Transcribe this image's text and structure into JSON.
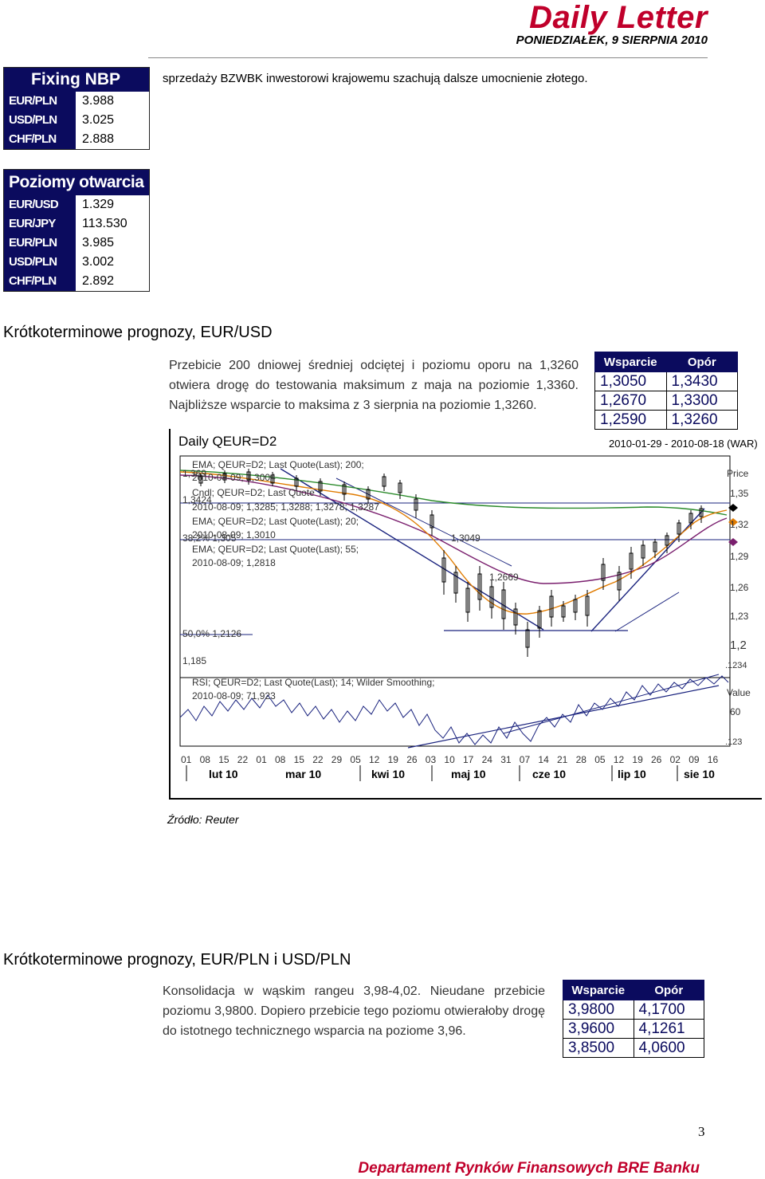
{
  "header": {
    "title": "Daily Letter",
    "date": "PONIEDZIAŁEK, 9 SIERPNIA 2010"
  },
  "fixing": {
    "title": "Fixing NBP",
    "rows": [
      {
        "name": "EUR/PLN",
        "value": "3.988"
      },
      {
        "name": "USD/PLN",
        "value": "3.025"
      },
      {
        "name": "CHF/PLN",
        "value": "2.888"
      }
    ]
  },
  "opening": {
    "title": "Poziomy otwarcia",
    "rows": [
      {
        "name": "EUR/USD",
        "value": "1.329"
      },
      {
        "name": "EUR/JPY",
        "value": "113.530"
      },
      {
        "name": "EUR/PLN",
        "value": "3.985"
      },
      {
        "name": "USD/PLN",
        "value": "3.002"
      },
      {
        "name": "CHF/PLN",
        "value": "2.892"
      }
    ]
  },
  "intro_text": "sprzedaży BZWBK inwestorowi krajowemu szachują dalsze umocnienie złotego.",
  "eurusd": {
    "title": "Krótkoterminowe prognozy, EUR/USD",
    "text": "Przebicie 200 dniowej średniej odciętej i poziomu oporu na 1,3260 otwiera drogę do testowania maksimum z maja na poziomie 1,3360. Najbliższe wsparcie to maksima z 3 sierpnia na poziomie 1,3260.",
    "levels": {
      "support_label": "Wsparcie",
      "resistance_label": "Opór",
      "support": [
        "1,3050",
        "1,2670",
        "1,2590"
      ],
      "resistance": [
        "1,3430",
        "1,3300",
        "1,3260"
      ]
    }
  },
  "chart": {
    "title": "Daily QEUR=D2",
    "range": "2010-01-29 - 2010-08-18 (WAR)",
    "price_label": "Price",
    "value_label": "Value",
    "ann_ema200": "EMA; QEUR=D2; Last Quote(Last); 200;",
    "ann_ema200_val": "2010-08-09; 1,3004",
    "ann_cndl": "Cndl; QEUR=D2; Last Quote",
    "ann_cndl_val": "2010-08-09; 1,3285; 1,3288; 1,3278; 1,3287",
    "ann_ema20": "EMA; QEUR=D2; Last Quote(Last); 20;",
    "ann_ema20_val": "2010-08-09; 1,3010",
    "ann_ema55": "EMA; QEUR=D2; Last Quote(Last); 55;",
    "ann_ema55_val": "2010-08-09; 1,2818",
    "ann_rsi": "RSI; QEUR=D2; Last Quote(Last); 14; Wilder Smoothing;",
    "ann_rsi_val": "2010-08-09; 71,923",
    "lvl_1369": "1,369",
    "lvl_13424": "1,3424",
    "lvl_382": "38,2%   1,305",
    "lvl_13049": "1,3049",
    "lvl_12669": "1,2669",
    "lvl_500": "50,0%   1,2126",
    "lvl_1185": "1,185",
    "rsi_small_top": ".1234",
    "rsi_small_bottom": ".123"
  },
  "chart_data": {
    "type": "line",
    "title": "Daily QEUR=D2",
    "y_ticks": [
      "1,35",
      "1,32",
      "1,29",
      "1,26",
      "1,23",
      "1,2"
    ],
    "rsi_ticks": [
      "60"
    ],
    "day_ticks": [
      "01",
      "08",
      "15",
      "22",
      "01",
      "08",
      "15",
      "22",
      "29",
      "05",
      "12",
      "19",
      "26",
      "03",
      "10",
      "17",
      "24",
      "31",
      "07",
      "14",
      "21",
      "28",
      "05",
      "12",
      "19",
      "26",
      "02",
      "09",
      "16"
    ],
    "months": [
      "lut 10",
      "mar 10",
      "kwi 10",
      "maj 10",
      "cze 10",
      "lip 10",
      "sie 10"
    ],
    "ylim": [
      1.185,
      1.375
    ],
    "series": [
      {
        "name": "EMA; QEUR=D2; Last Quote(Last); 200;",
        "color": "#2a8a2a"
      },
      {
        "name": "EMA; QEUR=D2; Last Quote(Last); 20;",
        "color": "#e07b00"
      },
      {
        "name": "EMA; QEUR=D2; Last Quote(Last); 55;",
        "color": "#7a1f6e"
      },
      {
        "name": "RSI; QEUR=D2; Last Quote(Last); 14; Wilder Smoothing;",
        "color": "#1a237e"
      }
    ]
  },
  "eurpln": {
    "title": "Krótkoterminowe prognozy, EUR/PLN i USD/PLN",
    "text": "Konsolidacja w wąskim rangeu 3,98-4,02. Nieudane przebicie poziomu 3,9800. Dopiero przebicie tego poziomu otwierałoby drogę do istotnego technicznego wsparcia na poziome 3,96.",
    "levels": {
      "support_label": "Wsparcie",
      "resistance_label": "Opór",
      "support": [
        "3,9800",
        "3,9600",
        "3,8500"
      ],
      "resistance": [
        "4,1700",
        "4,1261",
        "4,0600"
      ]
    }
  },
  "source": "Źródło: Reuter",
  "page_number": "3",
  "footer": "Departament Rynków Finansowych BRE Banku"
}
